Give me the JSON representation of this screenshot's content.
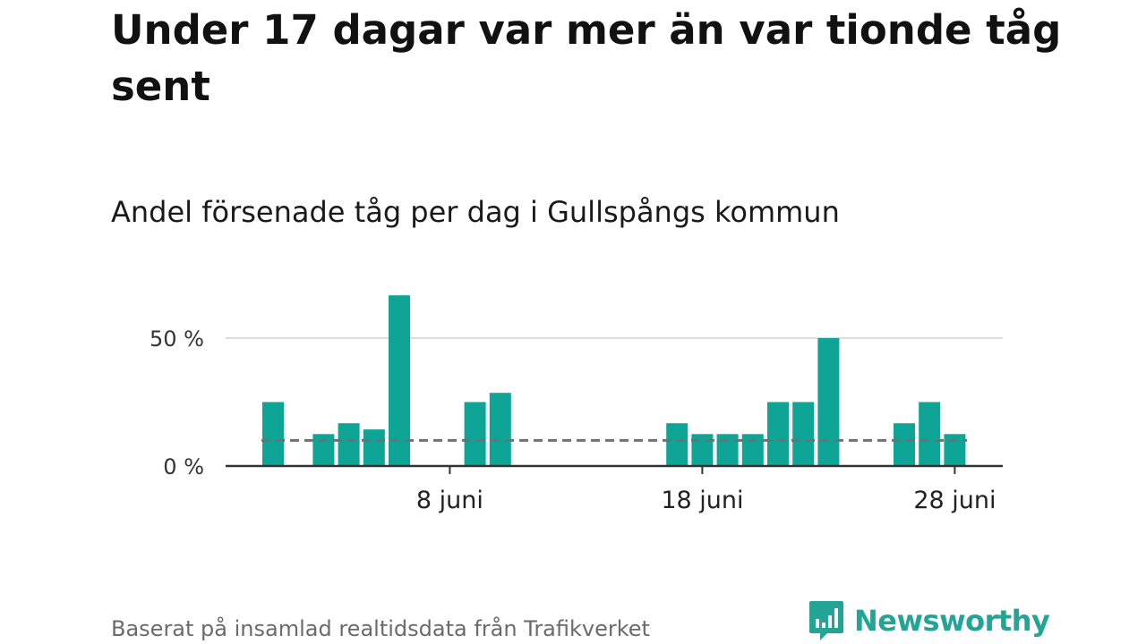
{
  "title": "Under 17 dagar var mer än var tionde tåg sent",
  "subtitle": "Andel försenade tåg per dag i Gullspångs kommun",
  "footer": "Baserat på insamlad realtidsdata från Trafikverket",
  "logo": {
    "text": "Newsworthy",
    "color": "#23a494"
  },
  "colors": {
    "bar": "#0ea597",
    "reference_line": "#707070",
    "grid": "#dddddd",
    "axis": "#333333"
  },
  "chart_data": {
    "type": "bar",
    "title": "Andel försenade tåg per dag i Gullspångs kommun",
    "xlabel": "",
    "ylabel": "",
    "x_unit": "day of June",
    "categories": [
      1,
      2,
      3,
      4,
      5,
      6,
      7,
      8,
      9,
      10,
      11,
      12,
      13,
      14,
      15,
      16,
      17,
      18,
      19,
      20,
      21,
      22,
      23,
      24,
      25,
      26,
      27,
      28,
      29
    ],
    "values": [
      25,
      0,
      12.5,
      16.7,
      14.3,
      66.7,
      0,
      0,
      25,
      28.6,
      0,
      0,
      0,
      0,
      0,
      0,
      16.7,
      12.5,
      12.5,
      12.5,
      25,
      25,
      50,
      0,
      0,
      16.7,
      25,
      12.5,
      0
    ],
    "reference_line": {
      "value": 10,
      "style": "dashed"
    },
    "ylim": [
      0,
      70
    ],
    "y_ticks": [
      {
        "value": 0,
        "label": "0 %"
      },
      {
        "value": 50,
        "label": "50 %"
      }
    ],
    "x_ticks": [
      {
        "day": 8,
        "label": "8 juni"
      },
      {
        "day": 18,
        "label": "18 juni"
      },
      {
        "day": 28,
        "label": "28 juni"
      }
    ],
    "grid": "horizontal",
    "legend": "none"
  }
}
